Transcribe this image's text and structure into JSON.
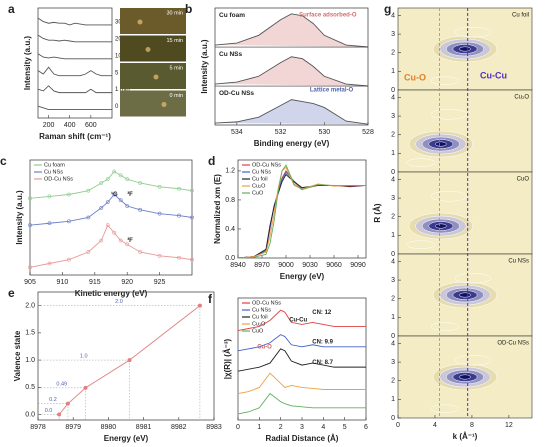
{
  "chart_data": [
    {
      "type": "line",
      "label": "a",
      "xlabel": "Raman shift (cm⁻¹)",
      "ylabel": "Intensity (a.u.)",
      "x": [
        100,
        150,
        200,
        250,
        300,
        350,
        400,
        450,
        500,
        550,
        600,
        650,
        700,
        800
      ],
      "xlim": [
        100,
        800
      ],
      "xticks": [
        200,
        400,
        600
      ],
      "ylim": [
        0.5,
        7
      ],
      "legend": "inline-right",
      "series": [
        {
          "name": "30 min",
          "color": "#555555",
          "values": [
            6.4,
            6.2,
            6.1,
            6.15,
            6.1,
            6.1,
            6.0,
            6.1,
            6.05,
            6.0,
            6.0,
            6.0,
            6.0,
            6.0
          ]
        },
        {
          "name": "20 min",
          "color": "#555555",
          "values": [
            5.4,
            5.2,
            5.1,
            5.1,
            5.05,
            5.1,
            5.05,
            5.0,
            5.0,
            5.0,
            5.0,
            5.0,
            5.0,
            5.0
          ]
        },
        {
          "name": "10 min",
          "color": "#555555",
          "values": [
            4.3,
            4.1,
            4.05,
            4.1,
            4.05,
            4.0,
            4.0,
            4.0,
            4.0,
            4.0,
            4.0,
            4.0,
            4.0,
            4.0
          ]
        },
        {
          "name": "5 min",
          "color": "#555555",
          "values": [
            3.3,
            3.1,
            3.5,
            3.1,
            3.0,
            3.0,
            3.0,
            3.0,
            3.0,
            3.1,
            3.3,
            3.1,
            3.0,
            3.0
          ]
        },
        {
          "name": "1 min",
          "color": "#555555",
          "values": [
            2.2,
            2.1,
            2.4,
            2.1,
            2.0,
            2.0,
            2.0,
            2.0,
            2.0,
            2.0,
            2.2,
            2.0,
            2.0,
            2.0
          ]
        },
        {
          "name": "0 min",
          "color": "#555555",
          "values": [
            1.2,
            1.1,
            1.0,
            1.0,
            1.0,
            1.0,
            1.0,
            1.0,
            1.0,
            1.0,
            1.0,
            1.0,
            1.0,
            1.0
          ]
        }
      ],
      "photos": [
        "30 min",
        "15 min",
        "5 min",
        "0 min"
      ]
    },
    {
      "type": "line",
      "label": "b",
      "xlabel": "Binding energy (eV)",
      "ylabel": "Intensity (a.u.)",
      "x": [
        535,
        534,
        533,
        532,
        531.5,
        531,
        530.5,
        530,
        529,
        528
      ],
      "xlim": [
        535,
        528
      ],
      "xticks": [
        534,
        532,
        530,
        528
      ],
      "ylim": [
        0,
        3
      ],
      "legend": "inline-top",
      "fill": true,
      "series": [
        {
          "name": "Cu foam",
          "color": "#d98a8a",
          "values": [
            2.05,
            2.1,
            2.3,
            2.7,
            2.85,
            2.8,
            2.6,
            2.3,
            2.05,
            2.0
          ]
        },
        {
          "name": "Cu NSs",
          "color": "#d98a8a",
          "values": [
            1.05,
            1.1,
            1.25,
            1.6,
            1.75,
            1.7,
            1.5,
            1.25,
            1.05,
            1.0
          ]
        },
        {
          "name": "OD-Cu NSs",
          "color": "#7a86c8",
          "values": [
            0.05,
            0.08,
            0.2,
            0.5,
            0.65,
            0.6,
            0.55,
            0.45,
            0.1,
            0.02
          ]
        }
      ],
      "annotations": [
        "Surface adsorbed-O",
        "Lattice metal-O"
      ]
    },
    {
      "type": "line",
      "label": "c",
      "xlabel": "Kinetic energy (eV)",
      "ylabel": "Intensity (a.u.)",
      "markers": true,
      "x": [
        905,
        908,
        911,
        914,
        916,
        917,
        918,
        919,
        920,
        922,
        925,
        928,
        930
      ],
      "xlim": [
        905,
        930
      ],
      "xticks": [
        905,
        910,
        915,
        920,
        925
      ],
      "ylim": [
        0,
        3
      ],
      "legend": "upper left",
      "series": [
        {
          "name": "Cu foam",
          "color": "#8fce8f",
          "values": [
            2.0,
            2.05,
            2.1,
            2.2,
            2.4,
            2.5,
            2.7,
            2.6,
            2.5,
            2.4,
            2.3,
            2.25,
            2.2
          ]
        },
        {
          "name": "Cu NSs",
          "color": "#6f7fc8",
          "values": [
            1.3,
            1.35,
            1.4,
            1.5,
            1.75,
            1.9,
            2.1,
            1.95,
            1.8,
            1.7,
            1.6,
            1.55,
            1.5
          ]
        },
        {
          "name": "OD-Cu NSs",
          "color": "#e79a9a",
          "values": [
            0.2,
            0.3,
            0.4,
            0.6,
            0.9,
            1.3,
            1.1,
            0.9,
            0.8,
            0.6,
            0.5,
            0.45,
            0.4
          ]
        }
      ],
      "annotations": [
        "¹G",
        "³F",
        "³F"
      ]
    },
    {
      "type": "line",
      "label": "d",
      "xlabel": "Energy (eV)",
      "ylabel": "Normalized xm (E)",
      "x": [
        8940,
        8960,
        8975,
        8980,
        8985,
        8990,
        8995,
        9000,
        9010,
        9020,
        9040,
        9060,
        9080,
        9100
      ],
      "xlim": [
        8940,
        9100
      ],
      "xticks": [
        8940,
        8970,
        9000,
        9030,
        9060,
        9090
      ],
      "ylim": [
        0,
        1.35
      ],
      "yticks": [
        {
          "value": 0,
          "label": "0.0"
        },
        0.4,
        0.8,
        1.2
      ],
      "legend": "upper left",
      "series": [
        {
          "name": "OD-Cu NSs",
          "color": "#e04040",
          "values": [
            0,
            0.02,
            0.1,
            0.4,
            0.7,
            0.9,
            1.1,
            1.2,
            1.05,
            0.95,
            1.0,
            1.0,
            0.98,
            1.0
          ]
        },
        {
          "name": "Cu NSs",
          "color": "#4060d0",
          "values": [
            0,
            0.02,
            0.1,
            0.42,
            0.72,
            0.9,
            1.08,
            1.18,
            1.06,
            0.96,
            1.0,
            1.0,
            0.99,
            1.0
          ]
        },
        {
          "name": "Cu foil",
          "color": "#222222",
          "values": [
            0,
            0.02,
            0.12,
            0.45,
            0.7,
            0.88,
            1.05,
            1.15,
            1.05,
            0.97,
            1.0,
            1.0,
            0.99,
            1.0
          ]
        },
        {
          "name": "Cu₂O",
          "color": "#f0a040",
          "values": [
            0,
            0.02,
            0.08,
            0.3,
            0.6,
            0.95,
            1.2,
            1.25,
            1.0,
            0.95,
            1.02,
            0.99,
            1.0,
            1.0
          ]
        },
        {
          "name": "CuO",
          "color": "#60b060",
          "values": [
            0,
            0.01,
            0.05,
            0.2,
            0.5,
            0.9,
            1.2,
            1.28,
            1.02,
            0.94,
            1.01,
            1.0,
            1.0,
            1.0
          ]
        }
      ]
    },
    {
      "type": "scatter-line",
      "label": "e",
      "xlabel": "Energy (eV)",
      "ylabel": "Valence state",
      "color": "#e08080",
      "x": [
        8978.6,
        8978.85,
        8979.35,
        8980.6,
        8982.6
      ],
      "values": [
        0,
        0.2,
        0.49,
        1.0,
        2.0
      ],
      "value_labels": [
        "0.0",
        "0.2",
        "0.49",
        "1.0",
        "2.0"
      ],
      "xlim": [
        8978,
        8983
      ],
      "xticks": [
        8978,
        8979,
        8980,
        8981,
        8982,
        8983
      ],
      "ylim": [
        -0.1,
        2.25
      ],
      "yticks": [
        {
          "value": 0,
          "label": "0.0"
        },
        0.5,
        {
          "value": 1,
          "label": "1.0"
        },
        1.5,
        {
          "value": 2,
          "label": "2.0"
        }
      ]
    },
    {
      "type": "line",
      "label": "f",
      "xlabel": "Radial Distance (Å)",
      "ylabel": "|χ(R)| (Å⁻³)",
      "x": [
        0,
        0.5,
        1,
        1.5,
        2,
        2.2,
        2.5,
        3,
        3.5,
        4,
        4.5,
        5,
        5.5,
        6
      ],
      "xlim": [
        0,
        6
      ],
      "xticks": [
        0,
        1,
        2,
        3,
        4,
        5,
        6
      ],
      "ylim": [
        0,
        6
      ],
      "legend": "upper left",
      "series": [
        {
          "name": "OD-Cu NSs",
          "color": "#e04040",
          "values": [
            4.4,
            4.5,
            4.6,
            4.9,
            5.4,
            5.3,
            4.8,
            4.7,
            4.8,
            4.7,
            4.6,
            4.6,
            4.6,
            4.6
          ]
        },
        {
          "name": "Cu NSs",
          "color": "#4060d0",
          "values": [
            3.4,
            3.5,
            3.6,
            3.8,
            4.2,
            4.1,
            3.7,
            3.6,
            3.7,
            3.6,
            3.6,
            3.6,
            3.6,
            3.6
          ]
        },
        {
          "name": "Cu foil",
          "color": "#222222",
          "values": [
            2.4,
            2.5,
            2.6,
            2.8,
            3.5,
            3.4,
            2.9,
            2.7,
            2.8,
            2.7,
            2.6,
            2.6,
            2.6,
            2.6
          ]
        },
        {
          "name": "Cu₂O",
          "color": "#f0a040",
          "values": [
            1.3,
            1.4,
            1.6,
            2.3,
            1.8,
            1.6,
            1.7,
            1.6,
            1.55,
            1.5,
            1.5,
            1.5,
            1.5,
            1.5
          ]
        },
        {
          "name": "CuO",
          "color": "#60b060",
          "values": [
            0.3,
            0.4,
            0.6,
            1.3,
            0.9,
            0.8,
            0.7,
            0.65,
            0.6,
            0.6,
            0.6,
            0.6,
            0.6,
            0.6
          ]
        }
      ],
      "annotations": [
        "Cu-Cu",
        "Cu-O",
        "CN: 12",
        "CN: 9.9",
        "CN: 8.7"
      ]
    },
    {
      "type": "heatmap",
      "label": "g",
      "xlabel": "k (Å⁻¹)",
      "ylabel": "R (Å)",
      "panels": [
        "Cu foil",
        "Cu₂O",
        "CuO",
        "Cu NSs",
        "OD-Cu NSs"
      ],
      "xlim": [
        0,
        14.5
      ],
      "xticks": [
        0,
        4,
        8,
        12
      ],
      "ylim": [
        0,
        4.4
      ],
      "yticks": [
        0,
        1,
        2,
        3,
        4
      ],
      "annotations": [
        "Cu-O",
        "Cu-Cu"
      ]
    }
  ]
}
